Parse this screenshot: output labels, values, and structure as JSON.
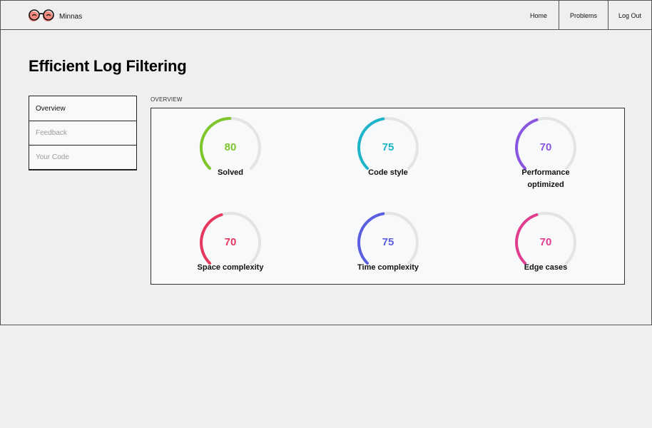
{
  "brand": {
    "name": "Minnas"
  },
  "nav": {
    "home": "Home",
    "problems": "Problems",
    "logout": "Log Out"
  },
  "page": {
    "title": "Efficient Log Filtering"
  },
  "sidebar": {
    "items": [
      {
        "label": "Overview"
      },
      {
        "label": "Feedback"
      },
      {
        "label": "Your Code"
      }
    ]
  },
  "overview": {
    "section_label": "OVERVIEW",
    "metrics": [
      {
        "label": "Solved",
        "value": 80,
        "color": "#7ec62b"
      },
      {
        "label": "Code style",
        "value": 75,
        "color": "#1db3c9"
      },
      {
        "label": "Performance optimized",
        "value": 70,
        "color": "#8a55e0"
      },
      {
        "label": "Space complexity",
        "value": 70,
        "color": "#e6375e"
      },
      {
        "label": "Time complexity",
        "value": 75,
        "color": "#5c5ee0"
      },
      {
        "label": "Edge cases",
        "value": 70,
        "color": "#e03d8f"
      }
    ]
  },
  "colors": {
    "track": "#e4e4e6",
    "border": "#555555",
    "background": "#efefef"
  }
}
